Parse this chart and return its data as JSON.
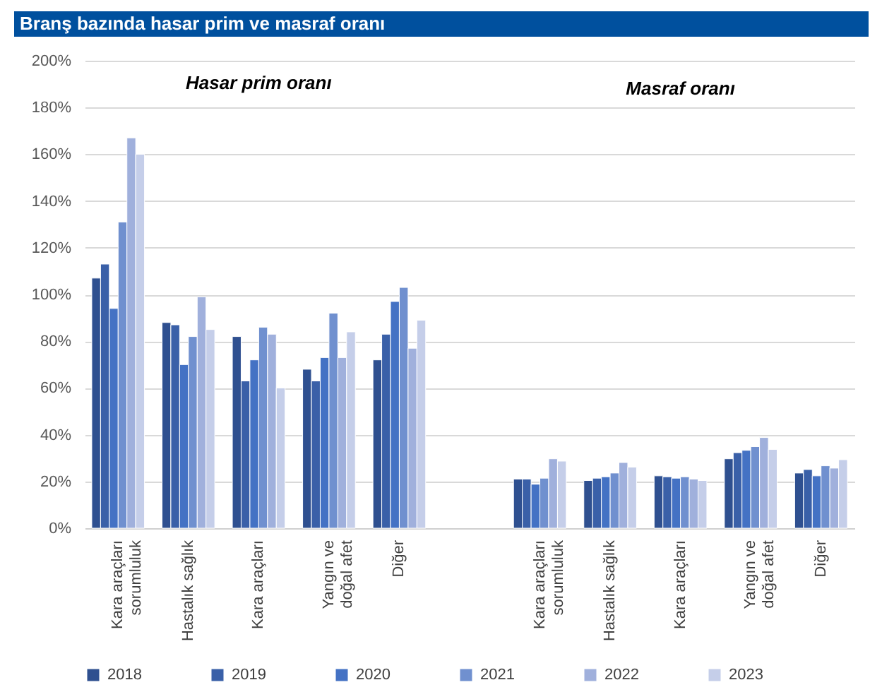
{
  "chart_data": {
    "type": "bar",
    "title": "Branş bazında hasar prim ve masraf oranı",
    "categories": [
      "Kara araçları sorumluluk",
      "Hastalık sağlık",
      "Kara araçları",
      "Yangın ve doğal afet",
      "Diğer",
      null,
      "Kara araçları sorumluluk",
      "Hastalık sağlık",
      "Kara araçları",
      "Yangın ve doğal afet",
      "Diğer"
    ],
    "series": [
      {
        "name": "2018",
        "color": "#2f5090",
        "values": [
          107,
          88,
          82,
          68,
          72,
          null,
          21,
          20.4,
          22.4,
          29.7,
          23.6
        ]
      },
      {
        "name": "2019",
        "color": "#3a60a8",
        "values": [
          113,
          87,
          63,
          63,
          83,
          null,
          21,
          21.4,
          22,
          32.3,
          25.1
        ]
      },
      {
        "name": "2020",
        "color": "#4472c4",
        "values": [
          94,
          70,
          72,
          73,
          97,
          null,
          18.8,
          22,
          21.4,
          33.3,
          22.4
        ]
      },
      {
        "name": "2021",
        "color": "#7090cf",
        "values": [
          131,
          82,
          86,
          92,
          103,
          null,
          21.4,
          23.6,
          22,
          34.9,
          26.7
        ]
      },
      {
        "name": "2022",
        "color": "#a0b0dc",
        "values": [
          167,
          99,
          83,
          73,
          77,
          null,
          29.7,
          28.1,
          21,
          38.8,
          25.7
        ]
      },
      {
        "name": "2023",
        "color": "#c5cee9",
        "values": [
          160,
          85,
          60,
          84,
          89,
          null,
          28.7,
          26.1,
          20.4,
          33.7,
          29.3
        ]
      }
    ],
    "ylim": [
      0,
      200
    ],
    "yticks": [
      {
        "value": 0,
        "label": "0%"
      },
      {
        "value": 20,
        "label": "20%"
      },
      {
        "value": 40,
        "label": "40%"
      },
      {
        "value": 60,
        "label": "60%"
      },
      {
        "value": 80,
        "label": "80%"
      },
      {
        "value": 100,
        "label": "100%"
      },
      {
        "value": 120,
        "label": "120%"
      },
      {
        "value": 140,
        "label": "140%"
      },
      {
        "value": 160,
        "label": "160%"
      },
      {
        "value": 180,
        "label": "180%"
      },
      {
        "value": 200,
        "label": "200%"
      }
    ],
    "annotations": [
      "Hasar prim oranı",
      "Masraf oranı"
    ],
    "grid": "y",
    "legend": "bottom"
  }
}
